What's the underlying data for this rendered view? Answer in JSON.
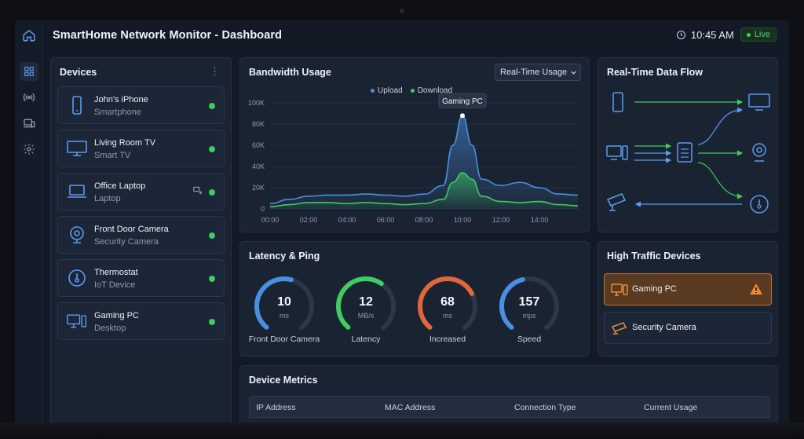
{
  "header": {
    "title": "SmartHome Network Monitor - Dashboard",
    "time": "10:45 AM",
    "live": "Live"
  },
  "sidebar": {
    "icons": [
      "home-icon",
      "grid-icon",
      "wireless-icon",
      "devices-icon",
      "gear-icon"
    ]
  },
  "devices": {
    "title": "Devices",
    "items": [
      {
        "name": "John's iPhone",
        "type": "Smartphone",
        "icon": "smartphone-icon"
      },
      {
        "name": "Living Room TV",
        "type": "Smart TV",
        "icon": "tv-icon"
      },
      {
        "name": "Office Laptop",
        "type": "Laptop",
        "icon": "laptop-icon"
      },
      {
        "name": "Front Door Camera",
        "type": "Security Camera",
        "icon": "camera-icon"
      },
      {
        "name": "Thermostat",
        "type": "IoT Device",
        "icon": "thermostat-icon"
      },
      {
        "name": "Gaming PC",
        "type": "Desktop",
        "icon": "desktop-icon"
      }
    ]
  },
  "bandwidth": {
    "title": "Bandwidth Usage",
    "select": "Real-Time Usage",
    "tooltip": "Gaming PC"
  },
  "chart_data": {
    "type": "area",
    "x_ticks": [
      "00:00",
      "02:00",
      "04:00",
      "06:00",
      "08:00",
      "10:00",
      "12:00",
      "14:00"
    ],
    "y_ticks": [
      "0",
      "20K",
      "40K",
      "60K",
      "80K",
      "100K"
    ],
    "ylim": [
      0,
      100000
    ],
    "legend_position": "top-center",
    "series": [
      {
        "name": "Upload",
        "color": "#4a8fe0",
        "points": [
          [
            0,
            5000
          ],
          [
            1,
            9000
          ],
          [
            2,
            12000
          ],
          [
            3,
            13000
          ],
          [
            4,
            13000
          ],
          [
            5,
            14000
          ],
          [
            6,
            13000
          ],
          [
            7,
            12000
          ],
          [
            8,
            14000
          ],
          [
            9,
            22000
          ],
          [
            9.5,
            60000
          ],
          [
            10,
            88000
          ],
          [
            10.5,
            60000
          ],
          [
            11,
            28000
          ],
          [
            12,
            22000
          ],
          [
            13,
            25000
          ],
          [
            14,
            20000
          ],
          [
            15,
            14000
          ],
          [
            16,
            13000
          ]
        ]
      },
      {
        "name": "Download",
        "color": "#3ecb60",
        "points": [
          [
            0,
            2000
          ],
          [
            1,
            4000
          ],
          [
            2,
            6000
          ],
          [
            3,
            6000
          ],
          [
            4,
            5000
          ],
          [
            5,
            6000
          ],
          [
            6,
            5000
          ],
          [
            7,
            4000
          ],
          [
            8,
            5000
          ],
          [
            9,
            9000
          ],
          [
            9.5,
            25000
          ],
          [
            10,
            34000
          ],
          [
            10.5,
            28000
          ],
          [
            11,
            12000
          ],
          [
            12,
            7000
          ],
          [
            13,
            6000
          ],
          [
            14,
            7000
          ],
          [
            15,
            4000
          ],
          [
            16,
            3000
          ]
        ]
      }
    ]
  },
  "dataflow": {
    "title": "Real-Time Data Flow"
  },
  "latency": {
    "title": "Latency & Ping",
    "gauges": [
      {
        "value": "10",
        "unit": "ms",
        "label": "Front Door Camera",
        "color": "#4a8fe0",
        "fraction": 0.55
      },
      {
        "value": "12",
        "unit": "MB/s",
        "label": "Latency",
        "color": "#3ecb60",
        "fraction": 0.62
      },
      {
        "value": "68",
        "unit": "ms",
        "label": "Increased",
        "color": "#e0673a",
        "fraction": 0.72
      },
      {
        "value": "157",
        "unit": "mps",
        "label": "Speed",
        "color": "#4a8fe0",
        "fraction": 0.45
      }
    ]
  },
  "traffic": {
    "title": "High Traffic Devices",
    "items": [
      {
        "label": "Gaming PC",
        "alert": true
      },
      {
        "label": "Security Camera",
        "alert": false
      }
    ]
  },
  "metrics": {
    "title": "Device Metrics",
    "columns": [
      "IP Address",
      "MAC Address",
      "Connection Type",
      "Current Usage"
    ]
  }
}
